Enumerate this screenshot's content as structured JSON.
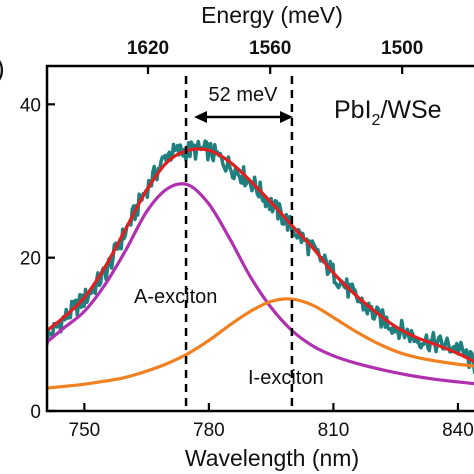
{
  "chart_data": {
    "type": "line",
    "title": "",
    "xlabel": "Wavelength (nm)",
    "top_xlabel": "Energy (meV)",
    "ylabel": "",
    "xlim": [
      741,
      847
    ],
    "ylim": [
      0,
      45
    ],
    "x_ticks": [
      750,
      780,
      810,
      840
    ],
    "top_ticks": [
      1620,
      1560,
      1500
    ],
    "y_ticks": [
      0,
      20,
      40
    ],
    "grid": false,
    "legend": "none",
    "sample_label": {
      "main": "PbI",
      "sub": "2",
      "rest": "/WSe"
    },
    "annotations": {
      "a_exciton": "A-exciton",
      "i_exciton": "I-exciton",
      "splitting": "52 meV",
      "left_edge_fragment": ")"
    },
    "reference_lines_nm": [
      774.5,
      800
    ],
    "series": [
      {
        "color": "#1f7f7f",
        "x": [
          741,
          745,
          750,
          755,
          760,
          765,
          770,
          775,
          780,
          785,
          790,
          795,
          800,
          805,
          810,
          815,
          820,
          825,
          830,
          835,
          840,
          845,
          847
        ],
        "values": [
          9.5,
          12,
          14.6,
          18,
          23.5,
          29,
          33.5,
          34,
          34,
          32,
          30,
          27,
          24,
          21,
          18,
          15,
          12.5,
          11,
          9.5,
          8.8,
          8.2,
          5.5,
          5
        ]
      },
      {
        "color": "#e02020",
        "x": [
          741,
          745,
          750,
          755,
          760,
          765,
          770,
          775,
          780,
          785,
          790,
          795,
          800,
          805,
          810,
          815,
          820,
          825,
          830,
          835,
          840,
          845,
          847
        ],
        "values": [
          10.5,
          12.2,
          14.8,
          18.8,
          23.8,
          28.8,
          32.5,
          34,
          34,
          32.5,
          30,
          27.2,
          24.2,
          21.3,
          18,
          15.3,
          13,
          11,
          9.6,
          8.6,
          7.5,
          6.2,
          5.8
        ]
      },
      {
        "color": "#b030b0",
        "x": [
          741,
          745,
          750,
          755,
          760,
          765,
          770,
          775,
          780,
          785,
          790,
          795,
          800,
          805,
          810,
          815,
          820,
          825,
          830,
          835,
          840,
          845,
          847
        ],
        "values": [
          9,
          10.8,
          13,
          16.5,
          21,
          26,
          29,
          29.5,
          27,
          22.5,
          17.5,
          13.5,
          10.5,
          8.5,
          7.2,
          6.3,
          5.6,
          5,
          4.5,
          4.1,
          3.8,
          3.5,
          3.4
        ]
      },
      {
        "color": "#f08020",
        "x": [
          741,
          745,
          750,
          755,
          760,
          765,
          770,
          775,
          780,
          785,
          790,
          795,
          800,
          805,
          810,
          815,
          820,
          825,
          830,
          835,
          840,
          845,
          847
        ],
        "values": [
          3,
          3.2,
          3.5,
          3.9,
          4.4,
          5.2,
          6.2,
          7.5,
          9.2,
          11.2,
          13,
          14.3,
          14.6,
          13.8,
          12.2,
          10.5,
          9,
          7.8,
          7,
          6.5,
          6.1,
          5.8,
          5.7
        ]
      }
    ]
  }
}
